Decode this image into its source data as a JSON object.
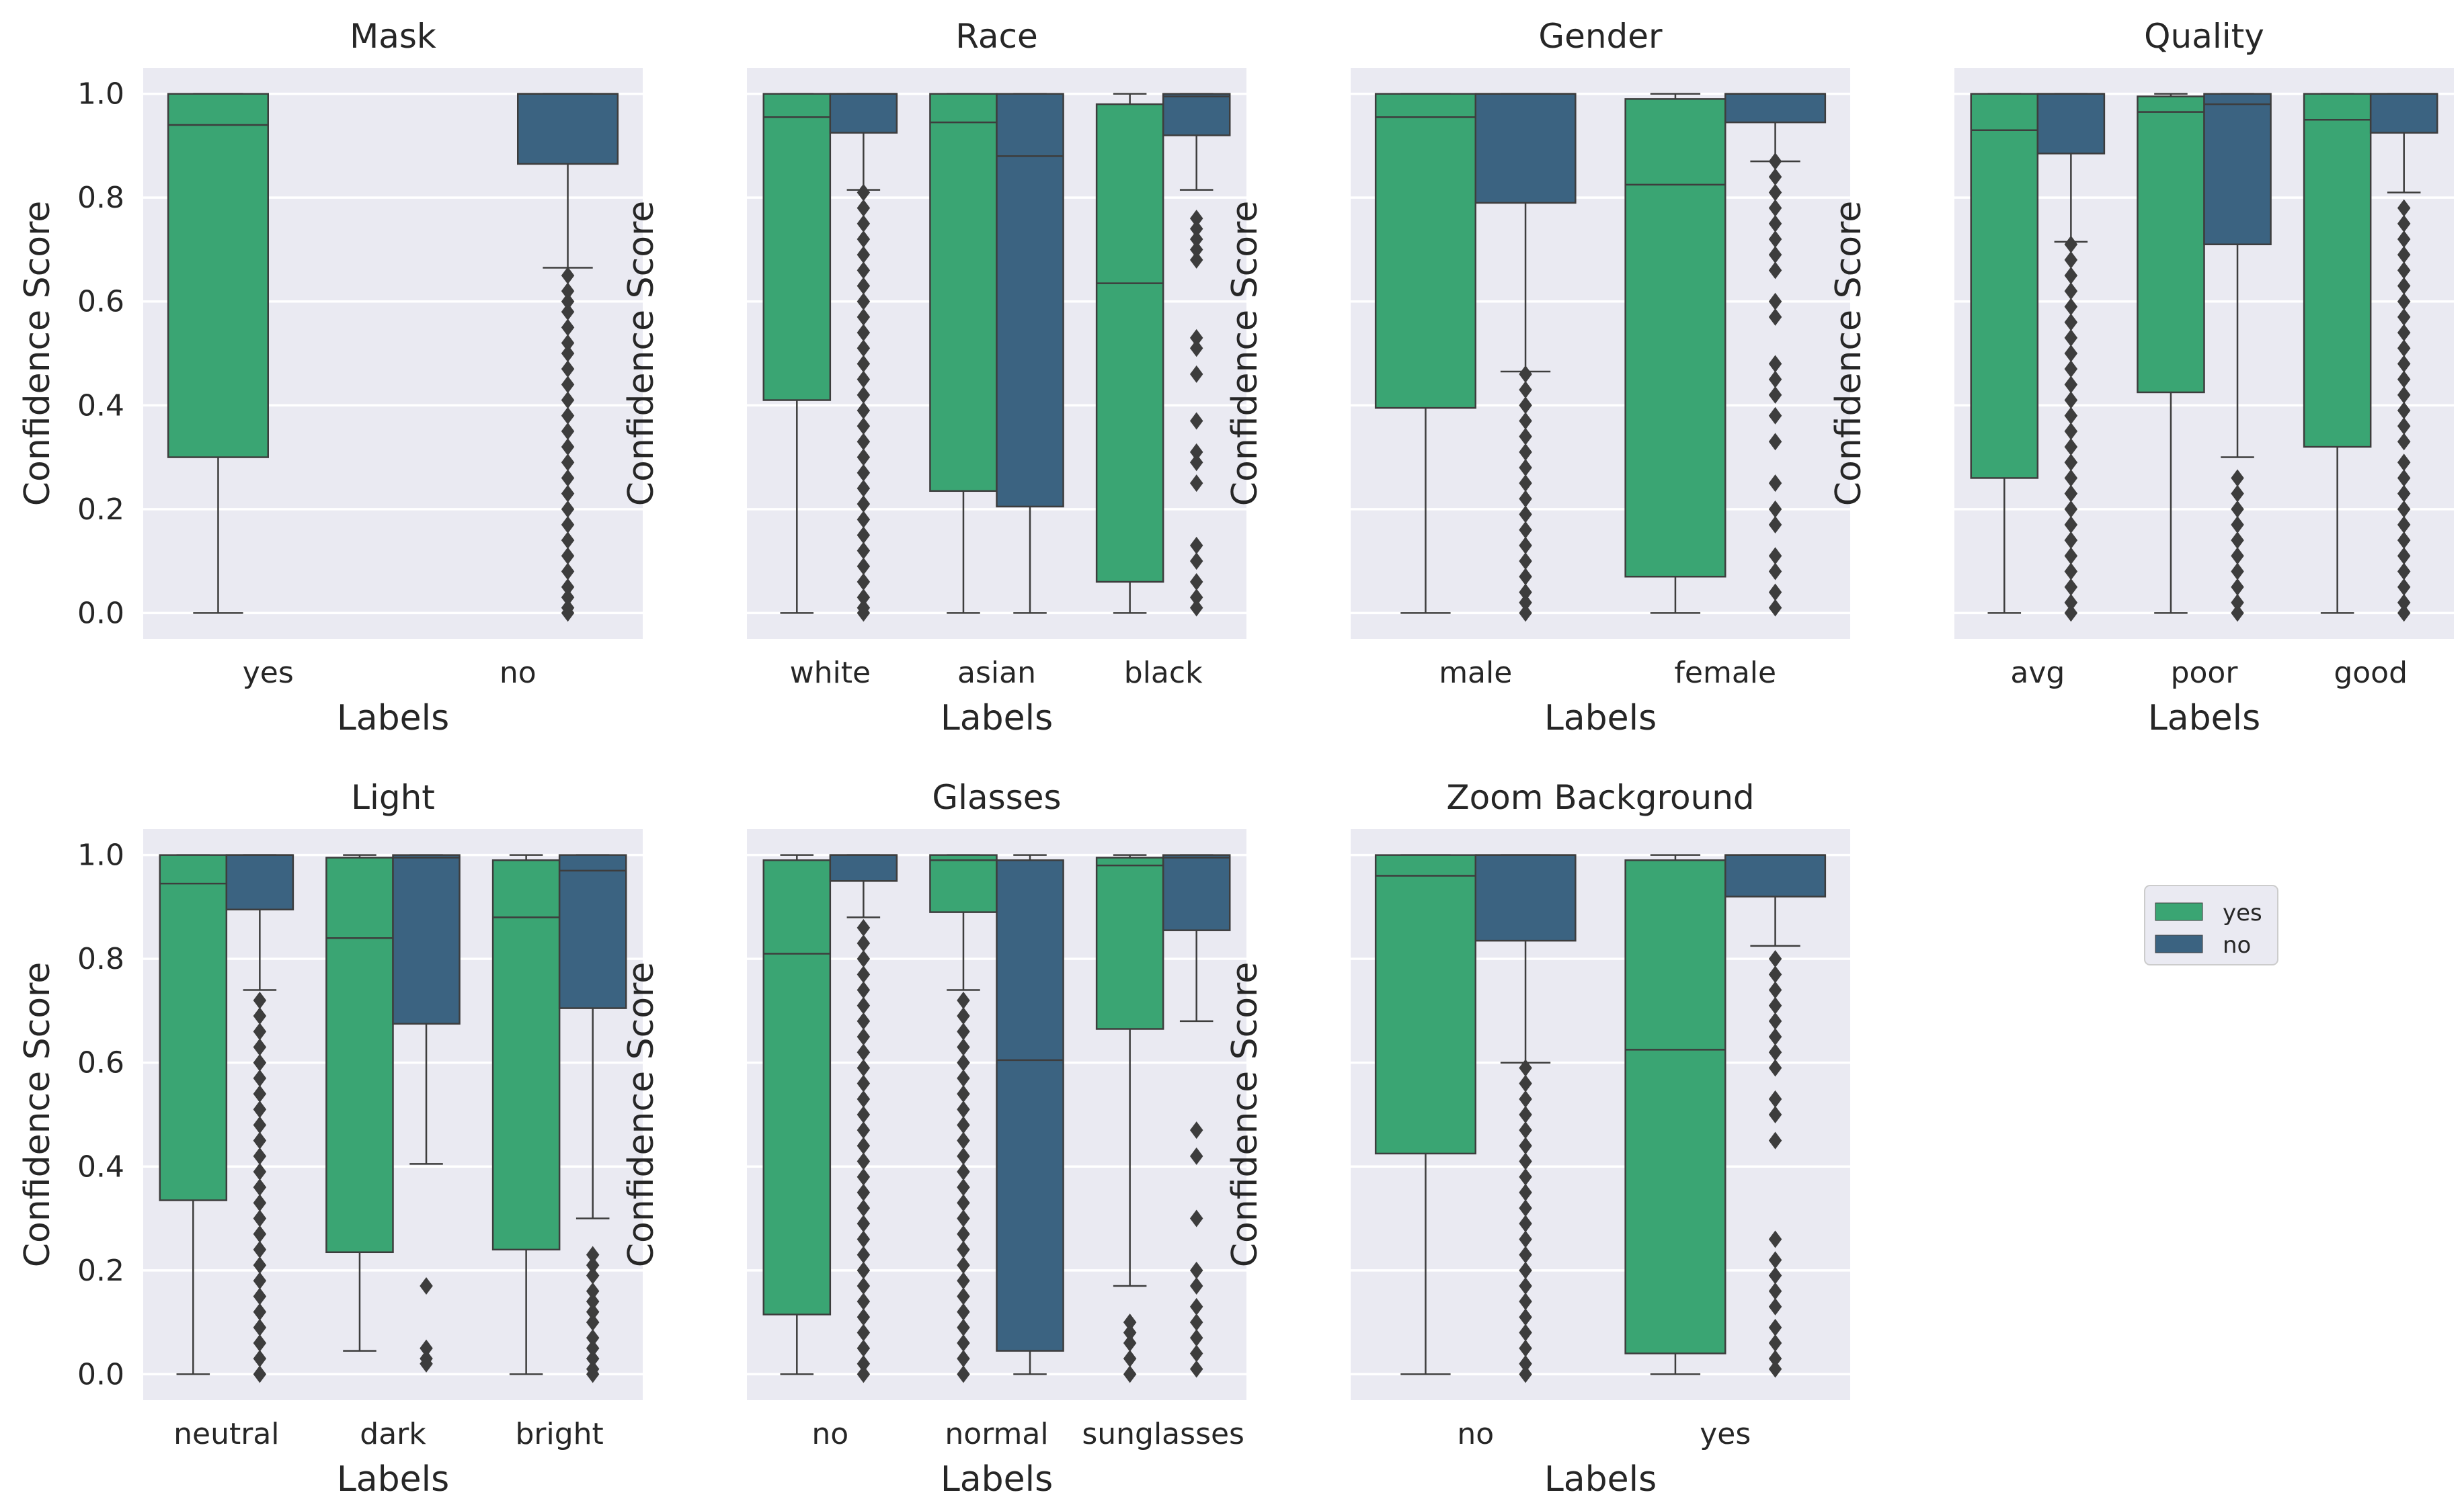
{
  "figure": {
    "legend": {
      "entries": [
        "yes",
        "no"
      ],
      "colors": [
        "#3aa573",
        "#3b6381"
      ]
    }
  },
  "chart_data": [
    {
      "type": "box",
      "title": "Mask",
      "xlabel": "Labels",
      "ylabel": "Confidence Score",
      "ylim": [
        -0.05,
        1.05
      ],
      "yticks": [
        "0.0",
        "0.2",
        "0.4",
        "0.6",
        "0.8",
        "1.0"
      ],
      "show_yticklabels": true,
      "categories": [
        "yes",
        "no"
      ],
      "boxes": [
        {
          "category": "yes",
          "series": "yes",
          "q1": 0.3,
          "median": 0.94,
          "q3": 1.0,
          "whisker_low": 0.0,
          "whisker_high": 1.0,
          "outliers": []
        },
        {
          "category": "no",
          "series": "no",
          "q1": 0.865,
          "median": 1.0,
          "q3": 1.0,
          "whisker_low": 0.665,
          "whisker_high": 1.0,
          "outliers": [
            0.65,
            0.62,
            0.6,
            0.58,
            0.55,
            0.52,
            0.5,
            0.47,
            0.44,
            0.41,
            0.38,
            0.35,
            0.32,
            0.29,
            0.26,
            0.23,
            0.2,
            0.17,
            0.14,
            0.11,
            0.08,
            0.05,
            0.03,
            0.01,
            0.0
          ]
        }
      ]
    },
    {
      "type": "box",
      "title": "Race",
      "xlabel": "Labels",
      "ylabel": "Confidence Score",
      "ylim": [
        -0.05,
        1.05
      ],
      "yticks": [
        "0.0",
        "0.2",
        "0.4",
        "0.6",
        "0.8",
        "1.0"
      ],
      "show_yticklabels": false,
      "categories": [
        "white",
        "asian",
        "black"
      ],
      "boxes": [
        {
          "category": "white",
          "series": "yes",
          "q1": 0.41,
          "median": 0.955,
          "q3": 1.0,
          "whisker_low": 0.0,
          "whisker_high": 1.0,
          "outliers": []
        },
        {
          "category": "white",
          "series": "no",
          "q1": 0.925,
          "median": 1.0,
          "q3": 1.0,
          "whisker_low": 0.815,
          "whisker_high": 1.0,
          "outliers": [
            0.81,
            0.78,
            0.75,
            0.72,
            0.69,
            0.66,
            0.63,
            0.6,
            0.57,
            0.54,
            0.51,
            0.48,
            0.45,
            0.42,
            0.39,
            0.36,
            0.33,
            0.3,
            0.27,
            0.24,
            0.21,
            0.18,
            0.15,
            0.12,
            0.09,
            0.06,
            0.03,
            0.01,
            0.0
          ]
        },
        {
          "category": "asian",
          "series": "yes",
          "q1": 0.235,
          "median": 0.945,
          "q3": 1.0,
          "whisker_low": 0.0,
          "whisker_high": 1.0,
          "outliers": []
        },
        {
          "category": "asian",
          "series": "no",
          "q1": 0.205,
          "median": 0.88,
          "q3": 1.0,
          "whisker_low": 0.0,
          "whisker_high": 1.0,
          "outliers": []
        },
        {
          "category": "black",
          "series": "yes",
          "q1": 0.06,
          "median": 0.635,
          "q3": 0.98,
          "whisker_low": 0.0,
          "whisker_high": 1.0,
          "outliers": []
        },
        {
          "category": "black",
          "series": "no",
          "q1": 0.92,
          "median": 0.995,
          "q3": 1.0,
          "whisker_low": 0.815,
          "whisker_high": 1.0,
          "outliers": [
            0.76,
            0.74,
            0.72,
            0.7,
            0.68,
            0.53,
            0.51,
            0.46,
            0.37,
            0.31,
            0.29,
            0.25,
            0.13,
            0.1,
            0.06,
            0.03,
            0.01
          ]
        }
      ]
    },
    {
      "type": "box",
      "title": "Gender",
      "xlabel": "Labels",
      "ylabel": "Confidence Score",
      "ylim": [
        -0.05,
        1.05
      ],
      "yticks": [
        "0.0",
        "0.2",
        "0.4",
        "0.6",
        "0.8",
        "1.0"
      ],
      "show_yticklabels": false,
      "categories": [
        "male",
        "female"
      ],
      "boxes": [
        {
          "category": "male",
          "series": "yes",
          "q1": 0.395,
          "median": 0.955,
          "q3": 1.0,
          "whisker_low": 0.0,
          "whisker_high": 1.0,
          "outliers": []
        },
        {
          "category": "male",
          "series": "no",
          "q1": 0.79,
          "median": 1.0,
          "q3": 1.0,
          "whisker_low": 0.465,
          "whisker_high": 1.0,
          "outliers": [
            0.46,
            0.43,
            0.4,
            0.37,
            0.34,
            0.31,
            0.28,
            0.25,
            0.22,
            0.19,
            0.16,
            0.13,
            0.1,
            0.07,
            0.04,
            0.02,
            0.0
          ]
        },
        {
          "category": "female",
          "series": "yes",
          "q1": 0.07,
          "median": 0.825,
          "q3": 0.99,
          "whisker_low": 0.0,
          "whisker_high": 1.0,
          "outliers": []
        },
        {
          "category": "female",
          "series": "no",
          "q1": 0.945,
          "median": 1.0,
          "q3": 1.0,
          "whisker_low": 0.87,
          "whisker_high": 1.0,
          "outliers": [
            0.87,
            0.84,
            0.81,
            0.78,
            0.75,
            0.72,
            0.69,
            0.66,
            0.6,
            0.57,
            0.48,
            0.45,
            0.42,
            0.38,
            0.33,
            0.25,
            0.2,
            0.17,
            0.11,
            0.08,
            0.04,
            0.01
          ]
        }
      ]
    },
    {
      "type": "box",
      "title": "Quality",
      "xlabel": "Labels",
      "ylabel": "Confidence Score",
      "ylim": [
        -0.05,
        1.05
      ],
      "yticks": [
        "0.0",
        "0.2",
        "0.4",
        "0.6",
        "0.8",
        "1.0"
      ],
      "show_yticklabels": false,
      "categories": [
        "avg",
        "poor",
        "good"
      ],
      "boxes": [
        {
          "category": "avg",
          "series": "yes",
          "q1": 0.26,
          "median": 0.93,
          "q3": 1.0,
          "whisker_low": 0.0,
          "whisker_high": 1.0,
          "outliers": []
        },
        {
          "category": "avg",
          "series": "no",
          "q1": 0.885,
          "median": 1.0,
          "q3": 1.0,
          "whisker_low": 0.715,
          "whisker_high": 1.0,
          "outliers": [
            0.71,
            0.68,
            0.65,
            0.62,
            0.59,
            0.56,
            0.53,
            0.5,
            0.47,
            0.44,
            0.41,
            0.38,
            0.35,
            0.32,
            0.29,
            0.26,
            0.23,
            0.2,
            0.17,
            0.14,
            0.11,
            0.08,
            0.05,
            0.02,
            0.0
          ]
        },
        {
          "category": "poor",
          "series": "yes",
          "q1": 0.425,
          "median": 0.965,
          "q3": 0.995,
          "whisker_low": 0.0,
          "whisker_high": 1.0,
          "outliers": []
        },
        {
          "category": "poor",
          "series": "no",
          "q1": 0.71,
          "median": 0.98,
          "q3": 1.0,
          "whisker_low": 0.3,
          "whisker_high": 1.0,
          "outliers": [
            0.26,
            0.23,
            0.2,
            0.17,
            0.14,
            0.11,
            0.08,
            0.05,
            0.02,
            0.0
          ]
        },
        {
          "category": "good",
          "series": "yes",
          "q1": 0.32,
          "median": 0.95,
          "q3": 1.0,
          "whisker_low": 0.0,
          "whisker_high": 1.0,
          "outliers": []
        },
        {
          "category": "good",
          "series": "no",
          "q1": 0.925,
          "median": 1.0,
          "q3": 1.0,
          "whisker_low": 0.81,
          "whisker_high": 1.0,
          "outliers": [
            0.78,
            0.75,
            0.72,
            0.69,
            0.66,
            0.63,
            0.6,
            0.57,
            0.54,
            0.51,
            0.48,
            0.45,
            0.42,
            0.39,
            0.36,
            0.33,
            0.29,
            0.26,
            0.23,
            0.2,
            0.17,
            0.14,
            0.11,
            0.08,
            0.05,
            0.02,
            0.0
          ]
        }
      ]
    },
    {
      "type": "box",
      "title": "Light",
      "xlabel": "Labels",
      "ylabel": "Confidence Score",
      "ylim": [
        -0.05,
        1.05
      ],
      "yticks": [
        "0.0",
        "0.2",
        "0.4",
        "0.6",
        "0.8",
        "1.0"
      ],
      "show_yticklabels": true,
      "categories": [
        "neutral",
        "dark",
        "bright"
      ],
      "boxes": [
        {
          "category": "neutral",
          "series": "yes",
          "q1": 0.335,
          "median": 0.945,
          "q3": 1.0,
          "whisker_low": 0.0,
          "whisker_high": 1.0,
          "outliers": []
        },
        {
          "category": "neutral",
          "series": "no",
          "q1": 0.895,
          "median": 1.0,
          "q3": 1.0,
          "whisker_low": 0.74,
          "whisker_high": 1.0,
          "outliers": [
            0.72,
            0.69,
            0.66,
            0.63,
            0.6,
            0.57,
            0.54,
            0.51,
            0.48,
            0.45,
            0.42,
            0.39,
            0.36,
            0.33,
            0.3,
            0.27,
            0.24,
            0.21,
            0.18,
            0.15,
            0.12,
            0.09,
            0.06,
            0.03,
            0.0
          ]
        },
        {
          "category": "dark",
          "series": "yes",
          "q1": 0.235,
          "median": 0.84,
          "q3": 0.995,
          "whisker_low": 0.045,
          "whisker_high": 1.0,
          "outliers": []
        },
        {
          "category": "dark",
          "series": "no",
          "q1": 0.675,
          "median": 0.995,
          "q3": 1.0,
          "whisker_low": 0.405,
          "whisker_high": 1.0,
          "outliers": [
            0.17,
            0.05,
            0.03,
            0.02
          ]
        },
        {
          "category": "bright",
          "series": "yes",
          "q1": 0.24,
          "median": 0.88,
          "q3": 0.99,
          "whisker_low": 0.0,
          "whisker_high": 1.0,
          "outliers": []
        },
        {
          "category": "bright",
          "series": "no",
          "q1": 0.705,
          "median": 0.97,
          "q3": 1.0,
          "whisker_low": 0.3,
          "whisker_high": 1.0,
          "outliers": [
            0.23,
            0.21,
            0.19,
            0.16,
            0.14,
            0.12,
            0.1,
            0.07,
            0.05,
            0.03,
            0.01,
            0.0
          ]
        }
      ]
    },
    {
      "type": "box",
      "title": "Glasses",
      "xlabel": "Labels",
      "ylabel": "Confidence Score",
      "ylim": [
        -0.05,
        1.05
      ],
      "yticks": [
        "0.0",
        "0.2",
        "0.4",
        "0.6",
        "0.8",
        "1.0"
      ],
      "show_yticklabels": false,
      "categories": [
        "no",
        "normal",
        "sunglasses"
      ],
      "boxes": [
        {
          "category": "no",
          "series": "yes",
          "q1": 0.115,
          "median": 0.81,
          "q3": 0.99,
          "whisker_low": 0.0,
          "whisker_high": 1.0,
          "outliers": []
        },
        {
          "category": "no",
          "series": "no",
          "q1": 0.95,
          "median": 1.0,
          "q3": 1.0,
          "whisker_low": 0.88,
          "whisker_high": 1.0,
          "outliers": [
            0.86,
            0.83,
            0.8,
            0.77,
            0.74,
            0.71,
            0.68,
            0.65,
            0.62,
            0.59,
            0.56,
            0.53,
            0.5,
            0.47,
            0.44,
            0.41,
            0.38,
            0.35,
            0.32,
            0.29,
            0.26,
            0.23,
            0.2,
            0.17,
            0.14,
            0.11,
            0.08,
            0.05,
            0.02,
            0.0
          ]
        },
        {
          "category": "normal",
          "series": "yes",
          "q1": 0.89,
          "median": 0.99,
          "q3": 1.0,
          "whisker_low": 0.74,
          "whisker_high": 1.0,
          "outliers": [
            0.72,
            0.69,
            0.66,
            0.63,
            0.6,
            0.57,
            0.54,
            0.51,
            0.48,
            0.45,
            0.42,
            0.39,
            0.36,
            0.33,
            0.3,
            0.27,
            0.24,
            0.21,
            0.18,
            0.15,
            0.12,
            0.09,
            0.06,
            0.03,
            0.0
          ]
        },
        {
          "category": "normal",
          "series": "no",
          "q1": 0.045,
          "median": 0.605,
          "q3": 0.99,
          "whisker_low": 0.0,
          "whisker_high": 1.0,
          "outliers": []
        },
        {
          "category": "sunglasses",
          "series": "yes",
          "q1": 0.665,
          "median": 0.98,
          "q3": 0.995,
          "whisker_low": 0.17,
          "whisker_high": 1.0,
          "outliers": [
            0.1,
            0.08,
            0.06,
            0.03,
            0.0
          ]
        },
        {
          "category": "sunglasses",
          "series": "no",
          "q1": 0.855,
          "median": 0.995,
          "q3": 1.0,
          "whisker_low": 0.68,
          "whisker_high": 1.0,
          "outliers": [
            0.47,
            0.42,
            0.3,
            0.2,
            0.17,
            0.13,
            0.1,
            0.07,
            0.04,
            0.01
          ]
        }
      ]
    },
    {
      "type": "box",
      "title": "Zoom Background",
      "xlabel": "Labels",
      "ylabel": "Confidence Score",
      "ylim": [
        -0.05,
        1.05
      ],
      "yticks": [
        "0.0",
        "0.2",
        "0.4",
        "0.6",
        "0.8",
        "1.0"
      ],
      "show_yticklabels": false,
      "categories": [
        "no",
        "yes"
      ],
      "boxes": [
        {
          "category": "no",
          "series": "yes",
          "q1": 0.425,
          "median": 0.96,
          "q3": 1.0,
          "whisker_low": 0.0,
          "whisker_high": 1.0,
          "outliers": []
        },
        {
          "category": "no",
          "series": "no",
          "q1": 0.835,
          "median": 1.0,
          "q3": 1.0,
          "whisker_low": 0.6,
          "whisker_high": 1.0,
          "outliers": [
            0.59,
            0.56,
            0.53,
            0.5,
            0.47,
            0.44,
            0.41,
            0.38,
            0.35,
            0.32,
            0.29,
            0.26,
            0.23,
            0.2,
            0.17,
            0.14,
            0.11,
            0.08,
            0.05,
            0.02,
            0.0
          ]
        },
        {
          "category": "yes",
          "series": "yes",
          "q1": 0.04,
          "median": 0.625,
          "q3": 0.99,
          "whisker_low": 0.0,
          "whisker_high": 1.0,
          "outliers": []
        },
        {
          "category": "yes",
          "series": "no",
          "q1": 0.92,
          "median": 1.0,
          "q3": 1.0,
          "whisker_low": 0.825,
          "whisker_high": 1.0,
          "outliers": [
            0.8,
            0.77,
            0.74,
            0.71,
            0.68,
            0.65,
            0.62,
            0.59,
            0.53,
            0.5,
            0.45,
            0.26,
            0.22,
            0.19,
            0.16,
            0.13,
            0.09,
            0.06,
            0.03,
            0.01
          ]
        }
      ]
    }
  ]
}
